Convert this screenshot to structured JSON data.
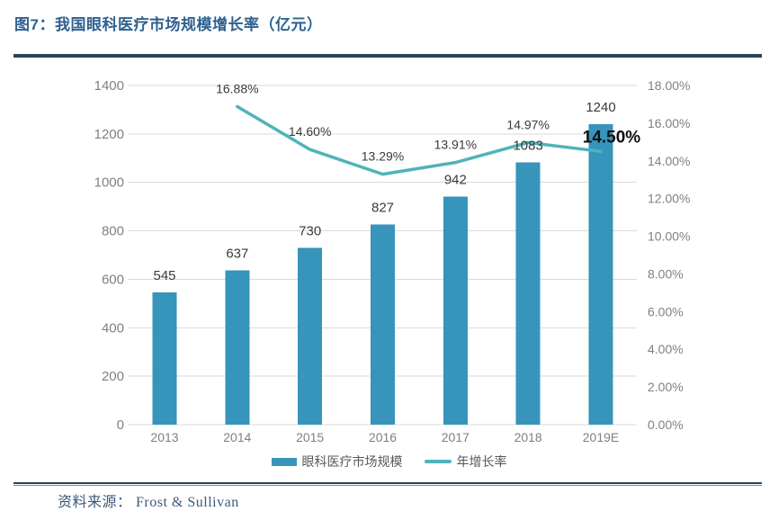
{
  "figure": {
    "title": "图7：我国眼科医疗市场规模增长率（亿元）",
    "source_label": "资料来源：",
    "source_value": "Frost & Sullivan"
  },
  "colors": {
    "title": "#2E618F",
    "rule": "#26455E",
    "rule_shadow": "#6E8CA0",
    "bar": "#3794BB",
    "line": "#4FB3B9",
    "grid": "#DADADA",
    "axis_text": "#808080",
    "value_text": "#3A3A3A",
    "highlight_text": "#111111",
    "legend_text": "#595959",
    "source_text": "#3A5A7A"
  },
  "legend": {
    "items": [
      {
        "label": "眼科医疗市场规模",
        "swatch": "bar"
      },
      {
        "label": "年增长率",
        "swatch": "line"
      }
    ]
  },
  "chart_data": {
    "type": "bar+line combo",
    "title": "我国眼科医疗市场规模增长率（亿元）",
    "categories": [
      "2013",
      "2014",
      "2015",
      "2016",
      "2017",
      "2018",
      "2019E"
    ],
    "series": [
      {
        "name": "眼科医疗市场规模",
        "type": "bar",
        "axis": "left",
        "values": [
          545,
          637,
          730,
          827,
          942,
          1083,
          1240
        ]
      },
      {
        "name": "年增长率",
        "type": "line",
        "axis": "right",
        "categories": [
          "2014",
          "2015",
          "2016",
          "2017",
          "2018",
          "2019E"
        ],
        "values": [
          16.88,
          14.6,
          13.29,
          13.91,
          14.97,
          14.5
        ],
        "labels": [
          "16.88%",
          "14.60%",
          "13.29%",
          "13.91%",
          "14.97%",
          "14.50%"
        ],
        "highlight_label": "14.50%"
      }
    ],
    "left_axis": {
      "min": 0,
      "max": 1400,
      "step": 200,
      "ticks": [
        "0",
        "200",
        "400",
        "600",
        "800",
        "1000",
        "1200",
        "1400"
      ]
    },
    "right_axis": {
      "min": 0,
      "max": 18,
      "step": 2,
      "ticks": [
        "0.00%",
        "2.00%",
        "4.00%",
        "6.00%",
        "8.00%",
        "10.00%",
        "12.00%",
        "14.00%",
        "16.00%",
        "18.00%"
      ]
    },
    "grid": true,
    "legend_position": "bottom"
  }
}
